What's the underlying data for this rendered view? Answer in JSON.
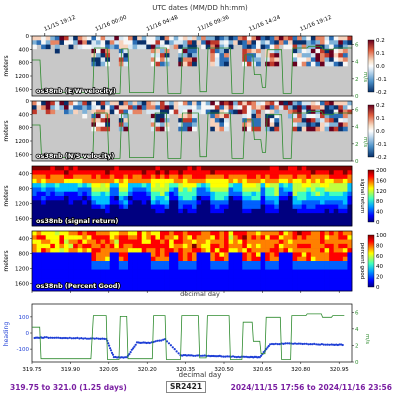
{
  "top_axis_title": "UTC dates (MM/DD hh:mm)",
  "bottom_axis_title": "decimal day",
  "colors": {
    "green_line": "#2e8b2e",
    "heading": "#1f3fd6",
    "no_data": "#c8c8c8",
    "footer_text": "#7a1fa2"
  },
  "footer": {
    "left": "319.75 to 321.0 (1.25 days)",
    "middle": "SR2421",
    "right": "2024/11/15 17:56 to 2024/11/16 23:56"
  },
  "chart_data": [
    {
      "type": "heatmap",
      "title": "os38nb (E/W velocity)",
      "ylabel": "meters",
      "y_ticks": [
        0,
        400,
        800,
        1200,
        1600
      ],
      "y_inverted": true,
      "x_range": [
        319.75,
        321.0
      ],
      "top_x_tick_labels": [
        "11/15 19:12",
        "11/16 00:00",
        "11/16 04:48",
        "11/16 09:36",
        "11/16 14:24",
        "11/16 19:12"
      ],
      "top_x_tick_values": [
        319.8,
        320.0,
        320.2,
        320.4,
        320.6,
        320.8
      ],
      "colorbar": {
        "range": [
          -0.2,
          0.2
        ],
        "ticks": [
          "0.2",
          "0.1",
          "0.0",
          "-0.1",
          "-0.2"
        ]
      },
      "right_axis": {
        "label": "m/s",
        "ticks": [
          0,
          2,
          4,
          6
        ]
      },
      "colormap": "diverging"
    },
    {
      "type": "heatmap",
      "title": "os38nb (N/S velocity)",
      "ylabel": "meters",
      "y_ticks": [
        0,
        400,
        800,
        1200,
        1600
      ],
      "y_inverted": true,
      "x_range": [
        319.75,
        321.0
      ],
      "colorbar": {
        "range": [
          -0.2,
          0.2
        ],
        "ticks": [
          "0.2",
          "0.1",
          "0.0",
          "-0.1",
          "-0.2"
        ]
      },
      "right_axis": {
        "label": "m/s",
        "ticks": [
          0,
          2,
          4,
          6
        ]
      },
      "colormap": "diverging"
    },
    {
      "type": "heatmap",
      "title": "os38nb (signal return)",
      "ylabel": "meters",
      "y_ticks": [
        400,
        800,
        1200,
        1600
      ],
      "y_inverted": true,
      "x_range": [
        319.75,
        321.0
      ],
      "colorbar": {
        "range": [
          0,
          200
        ],
        "ticks": [
          "200",
          "160",
          "120",
          "80",
          "40",
          "0"
        ],
        "label": "signal return"
      },
      "colormap": "jet"
    },
    {
      "type": "heatmap",
      "title": "os38nb (Percent Good)",
      "ylabel": "meters",
      "y_ticks": [
        400,
        800,
        1200,
        1600
      ],
      "y_inverted": true,
      "x_range": [
        319.75,
        321.0
      ],
      "colorbar": {
        "range": [
          0,
          100
        ],
        "ticks": [
          "100",
          "80",
          "60",
          "40",
          "20",
          "0"
        ],
        "label": "percent good"
      },
      "colormap": "jet"
    },
    {
      "type": "line",
      "ylabel": "heading",
      "y_ticks": [
        100,
        0,
        -100
      ],
      "ylim": [
        -180,
        180
      ],
      "right_axis": {
        "label": "m/s",
        "ticks": [
          0,
          2,
          4,
          6
        ],
        "range": [
          0,
          7
        ]
      },
      "xlabel": "decimal day",
      "x_ticks": [
        319.75,
        319.9,
        320.05,
        320.2,
        320.35,
        320.5,
        320.65,
        320.8,
        320.95
      ],
      "x_tick_labels": [
        "319.75",
        "319.90",
        "320.05",
        "320.20",
        "320.35",
        "320.50",
        "320.65",
        "320.80",
        "320.95"
      ],
      "series": [
        {
          "x": [
            319.76,
            319.8,
            319.86,
            319.92,
            319.98,
            320.04,
            320.07,
            320.12,
            320.16,
            320.21,
            320.27,
            320.33,
            320.38,
            320.44,
            320.49,
            320.55,
            320.6,
            320.64,
            320.68,
            320.74,
            320.8,
            320.86,
            320.92,
            320.97
          ],
          "y": [
            -30,
            -28,
            -30,
            -32,
            -34,
            -36,
            -150,
            -152,
            -60,
            -60,
            -40,
            -138,
            -140,
            -142,
            -144,
            -148,
            -150,
            -150,
            -70,
            -65,
            -68,
            -70,
            -72,
            -74
          ]
        },
        {
          "x": [
            319.75,
            319.78,
            319.785,
            319.98,
            319.99,
            320.04,
            320.045,
            320.09,
            320.095,
            320.12,
            320.125,
            320.22,
            320.225,
            320.27,
            320.275,
            320.33,
            320.335,
            320.4,
            320.405,
            320.43,
            320.435,
            320.52,
            320.525,
            320.57,
            320.575,
            320.61,
            320.615,
            320.64,
            320.645,
            320.66,
            320.665,
            320.72,
            320.725,
            320.76,
            320.765,
            320.82,
            320.825,
            320.88,
            320.885,
            320.92,
            320.925,
            320.97
          ],
          "y": [
            4.2,
            4.2,
            0.4,
            0.4,
            5.6,
            5.6,
            0.3,
            0.3,
            5.5,
            5.5,
            0.4,
            0.4,
            5.6,
            5.6,
            0.3,
            0.3,
            5.6,
            5.6,
            0.5,
            0.5,
            5.6,
            5.6,
            0.3,
            0.3,
            4.8,
            4.8,
            2.5,
            2.5,
            1.0,
            1.0,
            5.4,
            5.4,
            0.3,
            0.3,
            5.6,
            5.6,
            5.8,
            5.8,
            5.4,
            5.4,
            5.6,
            5.6
          ]
        }
      ]
    }
  ]
}
